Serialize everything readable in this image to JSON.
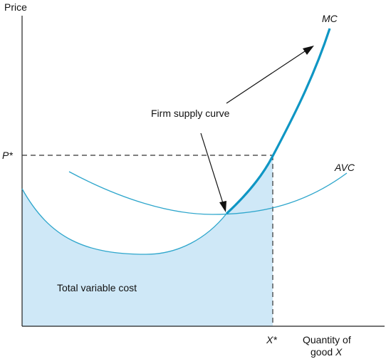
{
  "axes": {
    "y_label": "Price",
    "x_label_line1": "Quantity of",
    "x_label_line2_prefix": "good ",
    "x_label_line2_var": "X"
  },
  "markers": {
    "price_star": "P*",
    "quantity_star": "X*"
  },
  "curves": {
    "mc_label": "MC",
    "avc_label": "AVC",
    "supply_annotation": "Firm supply curve"
  },
  "area": {
    "label": "Total variable cost"
  },
  "colors": {
    "curve": "#2ea6cc",
    "supply": "#0f96c4",
    "fill": "#cfe8f7",
    "axis": "#222222",
    "text": "#111111"
  }
}
